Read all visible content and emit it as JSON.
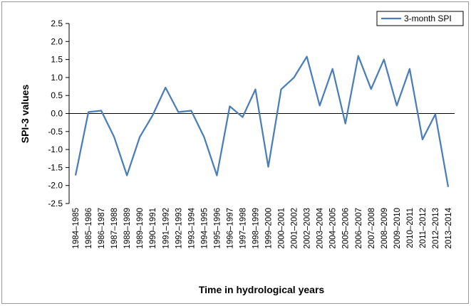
{
  "chart_data": {
    "type": "line",
    "y_label": "SPI-3 values",
    "x_label": "Time in hydrological years",
    "categories": [
      "1984–1985",
      "1985–1986",
      "1986–1987",
      "1987–1988",
      "1988–1989",
      "1989–1990",
      "1990–1991",
      "1991–1992",
      "1992–1993",
      "1993–1994",
      "1994–1995",
      "1995–1996",
      "1996–1997",
      "1997–1998",
      "1998–1999",
      "1999–2000",
      "2000–2001",
      "2001–2002",
      "2002–2003",
      "2003–2004",
      "2004–2005",
      "2005–2006",
      "2006–2007",
      "2007–2008",
      "2008–2009",
      "2009–2010",
      "2010–2011",
      "2011–2012",
      "2012–2013",
      "2013–2014"
    ],
    "series": [
      {
        "name": "3-month SPI",
        "color": "#4a7ebb",
        "values": [
          -1.72,
          0.04,
          0.08,
          -0.65,
          -1.72,
          -0.65,
          -0.05,
          0.72,
          0.04,
          0.08,
          -0.65,
          -1.72,
          0.2,
          -0.1,
          0.67,
          -1.48,
          0.67,
          1.0,
          1.58,
          0.22,
          1.24,
          -0.28,
          1.6,
          0.68,
          1.5,
          0.22,
          1.24,
          -0.72,
          -0.02,
          -2.04
        ]
      }
    ],
    "ylim": [
      -2.5,
      2.5
    ],
    "yticks": [
      2.5,
      {
        "value": 2.0,
        "label": "2.0"
      },
      1.5,
      {
        "value": 1.0,
        "label": "1.0"
      },
      0.5,
      {
        "value": 0.0,
        "label": "0.0"
      },
      -0.5,
      {
        "value": -1.0,
        "label": "-1.0"
      },
      -1.5,
      {
        "value": -2.0,
        "label": "-2.0"
      },
      -2.5
    ],
    "grid": false,
    "legend": "top-right"
  }
}
